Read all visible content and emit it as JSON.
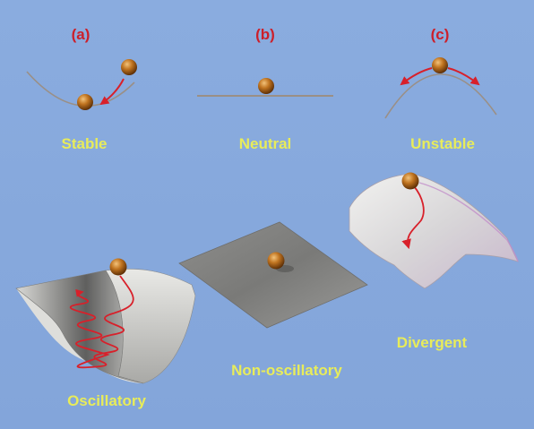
{
  "panels": [
    {
      "tag": "(a)",
      "label": "Stable"
    },
    {
      "tag": "(b)",
      "label": "Neutral"
    },
    {
      "tag": "(c)",
      "label": "Unstable"
    }
  ],
  "surfaces": [
    {
      "label": "Oscillatory"
    },
    {
      "label": "Non-oscillatory"
    },
    {
      "label": "Divergent"
    }
  ],
  "colors": {
    "background": "#86a8dc",
    "tag_text": "#cc1f2a",
    "label_text": "#e8ec5a",
    "ball": "#b86a1e",
    "path_arrow": "#d8202a",
    "curve_line": "#9a8f86"
  }
}
